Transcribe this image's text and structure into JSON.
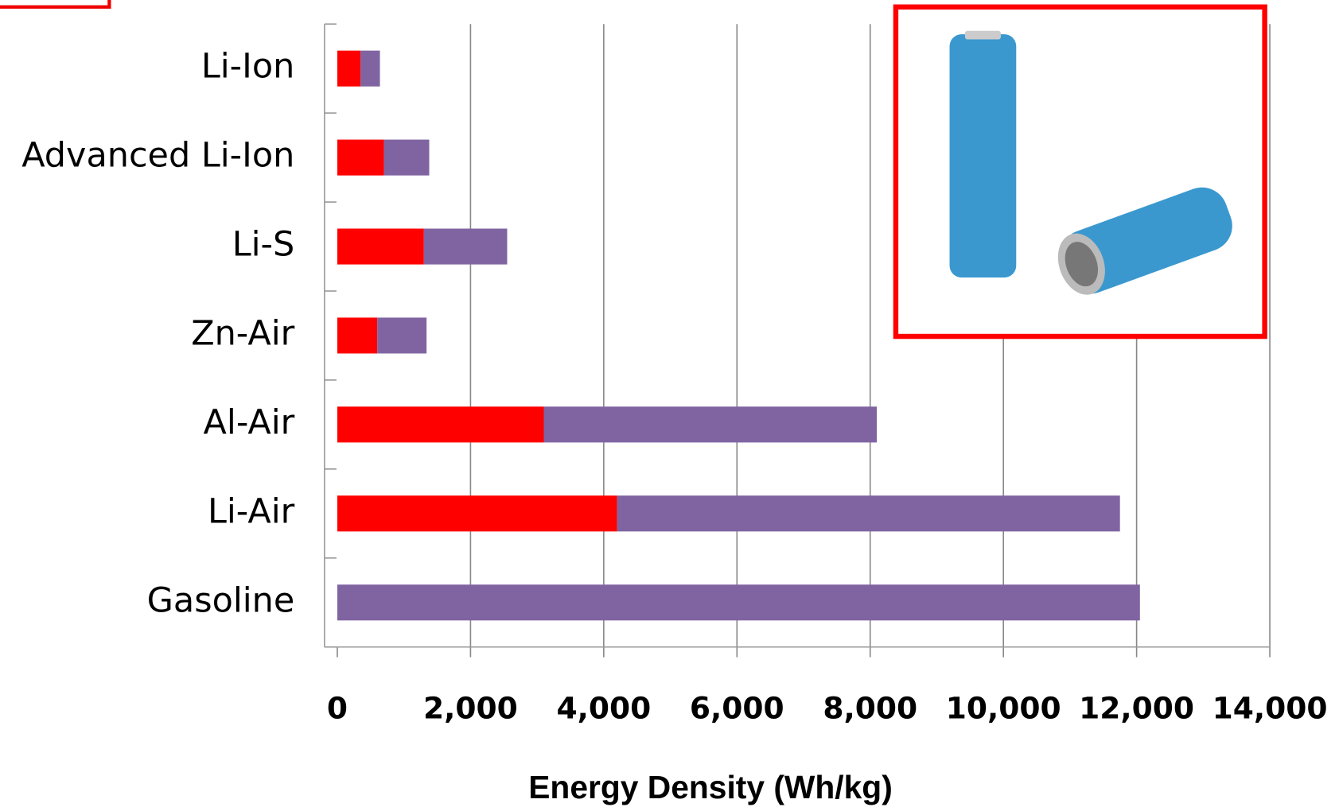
{
  "chart_data": {
    "type": "stacked-barh",
    "categories": [
      "Li-Ion",
      "Advanced Li-Ion",
      "Li-S",
      "Zn-Air",
      "Al-Air",
      "Li-Air",
      "Gasoline"
    ],
    "series": [
      {
        "color": "#ff0000",
        "values": [
          350,
          700,
          1300,
          600,
          3100,
          4200,
          0
        ]
      },
      {
        "color": "#8064a2",
        "values": [
          290,
          680,
          1250,
          740,
          5000,
          7550,
          12050
        ]
      }
    ],
    "xlim": [
      0,
      14000
    ],
    "xticks": [
      0,
      {
        "value": 2000,
        "label": "2,000"
      },
      {
        "value": 4000,
        "label": "4,000"
      },
      {
        "value": 6000,
        "label": "6,000"
      },
      {
        "value": 8000,
        "label": "8,000"
      },
      {
        "value": 10000,
        "label": "10,000"
      },
      {
        "value": 12000,
        "label": "12,000"
      },
      {
        "value": 14000,
        "label": "14,000"
      }
    ],
    "grid": true,
    "xlabel": "Energy Density (Wh/kg)"
  }
}
